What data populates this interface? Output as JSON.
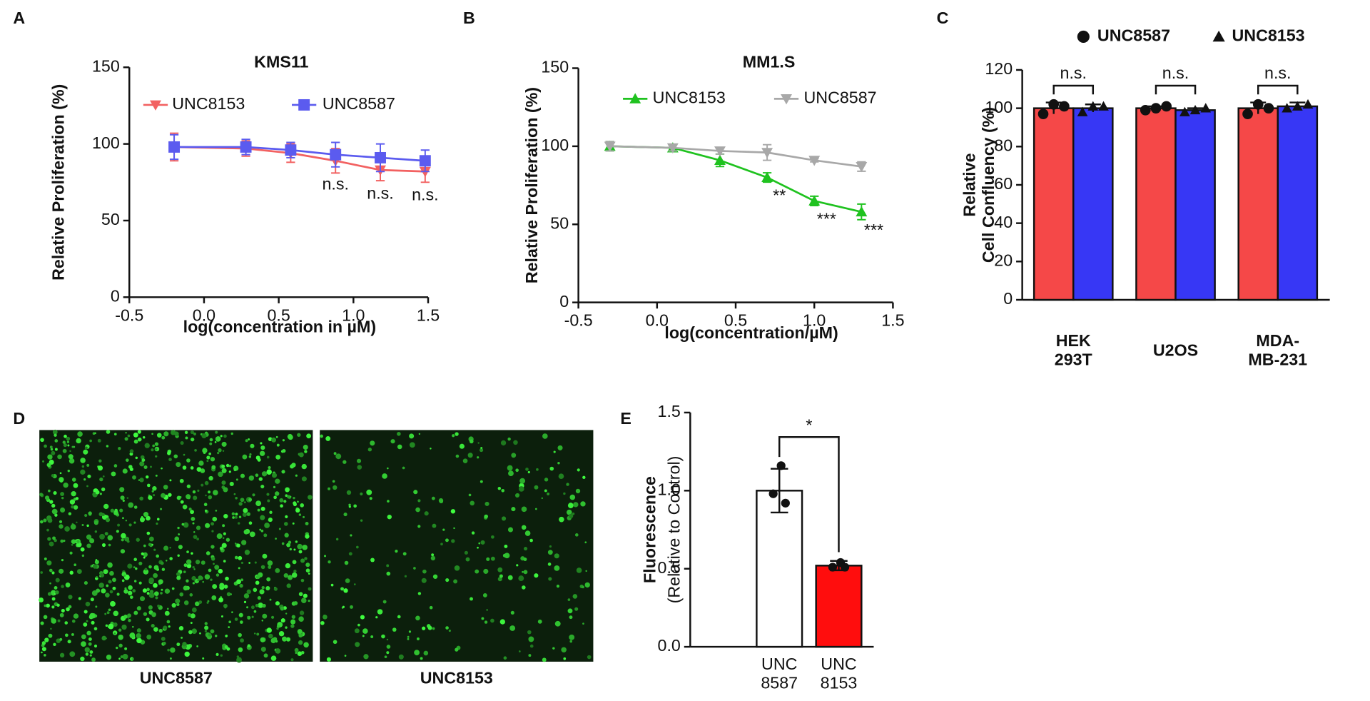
{
  "chart_data": [
    {
      "type": "line",
      "panel": "A",
      "title": "KMS11",
      "x_label": "log(concentration in µM)",
      "y_label": "Relative Proliferation (%)",
      "x": [
        -0.2,
        0.28,
        0.58,
        0.88,
        1.18,
        1.48
      ],
      "series": [
        {
          "name": "UNC8153",
          "color": "#f26161",
          "marker": "triangle-down",
          "values": [
            98,
            97,
            94,
            89,
            83,
            82
          ],
          "errors": [
            9,
            5,
            6,
            8,
            7,
            7
          ],
          "significance": [
            null,
            null,
            null,
            "n.s.",
            "n.s.",
            "n.s."
          ]
        },
        {
          "name": "UNC8587",
          "color": "#5b5bef",
          "marker": "square",
          "values": [
            98,
            98,
            96,
            93,
            91,
            89
          ],
          "errors": [
            8,
            5,
            5,
            8,
            9,
            7
          ]
        }
      ],
      "xlim": [
        -0.5,
        1.5
      ],
      "xticks": [
        -0.5,
        {
          "value": 0,
          "label": "0.0"
        },
        0.5,
        {
          "value": 1,
          "label": "1.0"
        },
        1.5
      ],
      "ylim": [
        0,
        150
      ],
      "yticks": [
        0,
        50,
        100,
        150
      ]
    },
    {
      "type": "line",
      "panel": "B",
      "title": "MM1.S",
      "x_label": "log(concentration/µM)",
      "y_label": "Relative Proliferation (%)",
      "x": [
        -0.3,
        0.1,
        0.4,
        0.7,
        1.0,
        1.3
      ],
      "series": [
        {
          "name": "UNC8153",
          "color": "#1fc21f",
          "marker": "triangle-up",
          "values": [
            100,
            99,
            91,
            80,
            65,
            58
          ],
          "errors": [
            3,
            2,
            4,
            3,
            3,
            5
          ],
          "significance": [
            null,
            null,
            null,
            "**",
            "***",
            "***"
          ]
        },
        {
          "name": "UNC8587",
          "color": "#a8a8a8",
          "marker": "triangle-down",
          "values": [
            100,
            99,
            97,
            96,
            91,
            87
          ],
          "errors": [
            3,
            2,
            2,
            5,
            1,
            3
          ]
        }
      ],
      "xlim": [
        -0.5,
        1.5
      ],
      "xticks": [
        -0.5,
        {
          "value": 0,
          "label": "0.0"
        },
        0.5,
        {
          "value": 1,
          "label": "1.0"
        },
        1.5
      ],
      "ylim": [
        0,
        150
      ],
      "yticks": [
        0,
        50,
        100,
        150
      ]
    },
    {
      "type": "bar",
      "panel": "C",
      "y_label": "Relative\nCell Confluency (%)",
      "categories": [
        "HEK\n293T",
        "U2OS",
        "MDA-\nMB-231"
      ],
      "series": [
        {
          "name": "UNC8587",
          "color": "#f54848",
          "marker": "circle",
          "values": [
            100,
            100,
            100
          ],
          "errors": [
            3,
            1,
            3
          ],
          "points": [
            [
              97,
              102,
              101
            ],
            [
              99,
              100,
              101
            ],
            [
              97,
              102,
              100
            ]
          ]
        },
        {
          "name": "UNC8153",
          "color": "#3737f5",
          "marker": "triangle",
          "values": [
            100,
            99,
            101
          ],
          "errors": [
            2,
            1,
            2
          ],
          "points": [
            [
              98,
              101,
              101
            ],
            [
              98,
              99,
              100
            ],
            [
              100,
              101,
              102
            ]
          ]
        }
      ],
      "significance": [
        "n.s.",
        "n.s.",
        "n.s."
      ],
      "ylim": [
        0,
        120
      ],
      "yticks": [
        0,
        20,
        40,
        60,
        80,
        100,
        120
      ]
    },
    {
      "type": "bar",
      "panel": "E",
      "y_label": "Fluorescence",
      "y_sublabel": "(Relative to Control)",
      "categories": [
        "UNC\n8587",
        "UNC\n8153"
      ],
      "values": [
        1.0,
        0.52
      ],
      "errors": [
        0.14,
        0.03
      ],
      "colors": [
        "#ffffff",
        "#ff0d0d"
      ],
      "points": [
        [
          1.16,
          0.98,
          0.92
        ],
        [
          0.54,
          0.51,
          0.51
        ]
      ],
      "significance": "*",
      "ylim": [
        0,
        1.5
      ],
      "yticks": [
        {
          "value": 0,
          "label": "0.0"
        },
        0.5,
        {
          "value": 1,
          "label": "1.0"
        },
        1.5
      ]
    }
  ],
  "images": {
    "panel": "D",
    "labels": [
      "UNC8587",
      "UNC8153"
    ]
  }
}
